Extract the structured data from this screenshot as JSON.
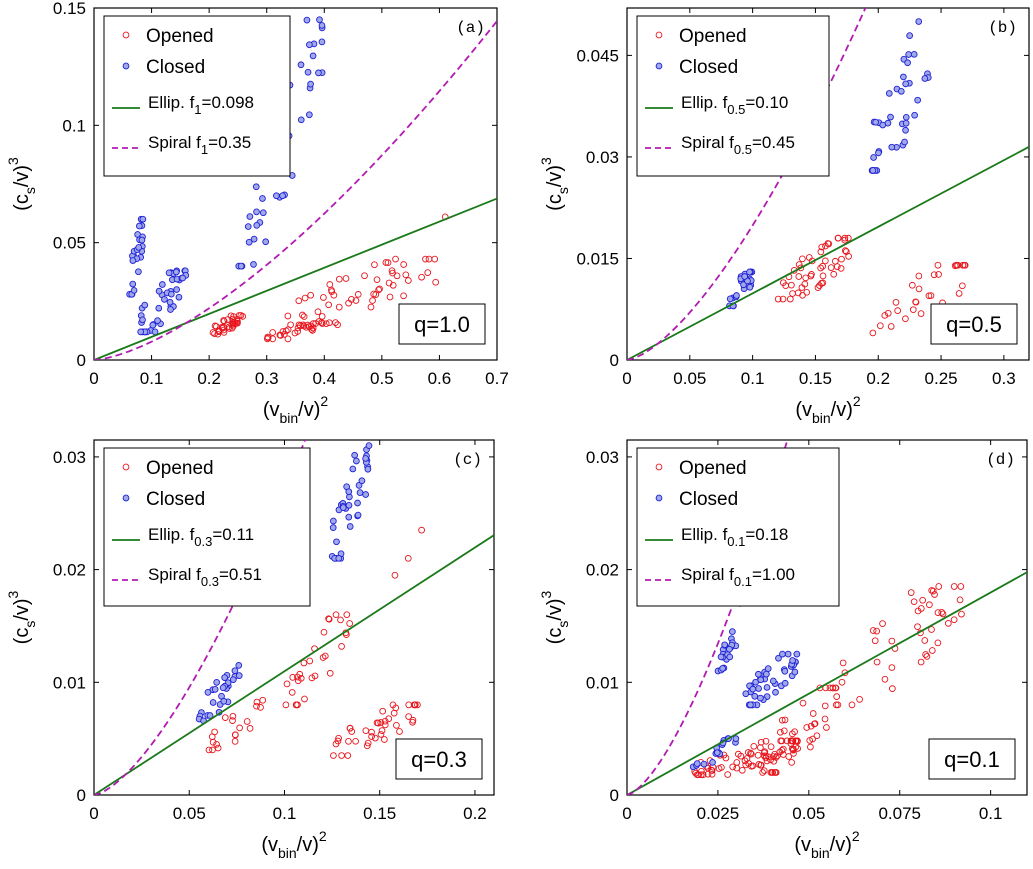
{
  "figure": {
    "ylabel": {
      "main": "(c",
      "sub": "s",
      "mid": "/v)",
      "sup": "3"
    },
    "xlabel": {
      "main": "(v",
      "sub": "bin",
      "mid": "/v)",
      "sup": "2"
    }
  },
  "colors": {
    "opened": "#e8151c",
    "closed": "#1f1fd6",
    "ellip": "#1a7a1a",
    "spiral": "#b21bb2"
  },
  "chart_data": [
    {
      "type": "scatter",
      "panel_label": "(a)",
      "q_label": "q=1.0",
      "xlim": [
        0,
        0.7
      ],
      "ylim": [
        0,
        0.15
      ],
      "xticks": [
        0,
        0.1,
        0.2,
        0.3,
        0.4,
        0.5,
        0.6,
        0.7
      ],
      "xtick_labels": [
        "0",
        "0.1",
        "0.2",
        "0.3",
        "0.4",
        "0.5",
        "0.6",
        "0.7"
      ],
      "yticks": [
        0,
        0.05,
        0.1,
        0.15
      ],
      "ytick_labels": [
        "0",
        "0.05",
        "0.1",
        "0.15"
      ],
      "legend": {
        "opened": "Opened",
        "closed": "Closed",
        "ellip": {
          "text": "Ellip. f",
          "sub": "1",
          "rest": "=0.098"
        },
        "spiral": {
          "text": "Spiral f",
          "sub": "1",
          "rest": "=0.35"
        }
      },
      "ellip_slope": 0.0983,
      "spiral_coeff": 0.2466,
      "opened_clusters": [
        {
          "x": [
            0.2,
            0.26
          ],
          "y": [
            0.011,
            0.019
          ],
          "n": 35
        },
        {
          "x": [
            0.3,
            0.42
          ],
          "y": [
            0.009,
            0.016
          ],
          "n": 30
        },
        {
          "x": [
            0.33,
            0.6
          ],
          "y": [
            0.015,
            0.043
          ],
          "n": 55
        }
      ],
      "opened_extra": [
        [
          0.61,
          0.061
        ]
      ],
      "closed_clusters": [
        {
          "x": [
            0.06,
            0.09
          ],
          "y": [
            0.028,
            0.06
          ],
          "n": 25
        },
        {
          "x": [
            0.08,
            0.16
          ],
          "y": [
            0.012,
            0.038
          ],
          "n": 45
        },
        {
          "x": [
            0.25,
            0.34
          ],
          "y": [
            0.04,
            0.09
          ],
          "n": 22
        },
        {
          "x": [
            0.3,
            0.4
          ],
          "y": [
            0.07,
            0.145
          ],
          "n": 28
        }
      ]
    },
    {
      "type": "scatter",
      "panel_label": "(b)",
      "q_label": "q=0.5",
      "xlim": [
        0,
        0.32
      ],
      "ylim": [
        0,
        0.052
      ],
      "xticks": [
        0,
        0.05,
        0.1,
        0.15,
        0.2,
        0.25,
        0.3
      ],
      "xtick_labels": [
        "0",
        "0.05",
        "0.1",
        "0.15",
        "0.2",
        "0.25",
        "0.3"
      ],
      "yticks": [
        0,
        0.015,
        0.03,
        0.045
      ],
      "ytick_labels": [
        "0",
        "0.015",
        "0.03",
        "0.045"
      ],
      "legend": {
        "opened": "Opened",
        "closed": "Closed",
        "ellip": {
          "text": "Ellip. f",
          "sub": "0.5",
          "rest": "=0.10"
        },
        "spiral": {
          "text": "Spiral f",
          "sub": "0.5",
          "rest": "=0.45"
        }
      },
      "ellip_slope": 0.0984,
      "spiral_coeff": 0.6289,
      "opened_clusters": [
        {
          "x": [
            0.12,
            0.18
          ],
          "y": [
            0.009,
            0.018
          ],
          "n": 50
        },
        {
          "x": [
            0.195,
            0.27
          ],
          "y": [
            0.004,
            0.014
          ],
          "n": 30
        }
      ],
      "opened_extra": [],
      "closed_clusters": [
        {
          "x": [
            0.08,
            0.1
          ],
          "y": [
            0.008,
            0.013
          ],
          "n": 30
        },
        {
          "x": [
            0.195,
            0.245
          ],
          "y": [
            0.028,
            0.05
          ],
          "n": 40
        }
      ]
    },
    {
      "type": "scatter",
      "panel_label": "(c)",
      "q_label": "q=0.3",
      "xlim": [
        0,
        0.21
      ],
      "ylim": [
        0,
        0.0315
      ],
      "xticks": [
        0,
        0.05,
        0.1,
        0.15,
        0.2
      ],
      "xtick_labels": [
        "0",
        "0.05",
        "0.1",
        "0.15",
        "0.2"
      ],
      "yticks": [
        0,
        0.01,
        0.02,
        0.03
      ],
      "ytick_labels": [
        "0",
        "0.01",
        "0.02",
        "0.03"
      ],
      "legend": {
        "opened": "Opened",
        "closed": "Closed",
        "ellip": {
          "text": "Ellip. f",
          "sub": "0.3",
          "rest": "=0.11"
        },
        "spiral": {
          "text": "Spiral f",
          "sub": "0.3",
          "rest": "=0.51"
        }
      },
      "ellip_slope": 0.1098,
      "spiral_coeff": 0.8539,
      "opened_clusters": [
        {
          "x": [
            0.06,
            0.09
          ],
          "y": [
            0.004,
            0.009
          ],
          "n": 20
        },
        {
          "x": [
            0.1,
            0.135
          ],
          "y": [
            0.008,
            0.016
          ],
          "n": 30
        },
        {
          "x": [
            0.125,
            0.17
          ],
          "y": [
            0.0035,
            0.008
          ],
          "n": 40
        }
      ],
      "opened_extra": [
        [
          0.165,
          0.021
        ],
        [
          0.172,
          0.0235
        ],
        [
          0.158,
          0.0195
        ]
      ],
      "closed_clusters": [
        {
          "x": [
            0.055,
            0.078
          ],
          "y": [
            0.0065,
            0.0115
          ],
          "n": 28
        },
        {
          "x": [
            0.125,
            0.145
          ],
          "y": [
            0.021,
            0.031
          ],
          "n": 40
        }
      ]
    },
    {
      "type": "scatter",
      "panel_label": "(d)",
      "q_label": "q=0.1",
      "xlim": [
        0,
        0.11
      ],
      "ylim": [
        0,
        0.0315
      ],
      "xticks": [
        0,
        0.025,
        0.05,
        0.075,
        0.1
      ],
      "xtick_labels": [
        "0",
        "0.025",
        "0.05",
        "0.075",
        "0.1"
      ],
      "yticks": [
        0,
        0.01,
        0.02,
        0.03
      ],
      "ytick_labels": [
        "0",
        "0.01",
        "0.02",
        "0.03"
      ],
      "legend": {
        "opened": "Opened",
        "closed": "Closed",
        "ellip": {
          "text": "Ellip. f",
          "sub": "0.1",
          "rest": "=0.18"
        },
        "spiral": {
          "text": "Spiral f",
          "sub": "0.1",
          "rest": "=1.00"
        }
      },
      "ellip_slope": 0.1797,
      "spiral_coeff": 3.4,
      "opened_clusters": [
        {
          "x": [
            0.018,
            0.048
          ],
          "y": [
            0.0018,
            0.0048
          ],
          "n": 70
        },
        {
          "x": [
            0.037,
            0.058
          ],
          "y": [
            0.002,
            0.0095
          ],
          "n": 50
        },
        {
          "x": [
            0.055,
            0.092
          ],
          "y": [
            0.008,
            0.0185
          ],
          "n": 45
        }
      ],
      "opened_extra": [],
      "closed_clusters": [
        {
          "x": [
            0.018,
            0.03
          ],
          "y": [
            0.0025,
            0.005
          ],
          "n": 18
        },
        {
          "x": [
            0.025,
            0.03
          ],
          "y": [
            0.011,
            0.0145
          ],
          "n": 20
        },
        {
          "x": [
            0.032,
            0.047
          ],
          "y": [
            0.008,
            0.0125
          ],
          "n": 45
        }
      ],
      "closed_extra": [
        [
          0.031,
          0.017
        ]
      ]
    }
  ]
}
